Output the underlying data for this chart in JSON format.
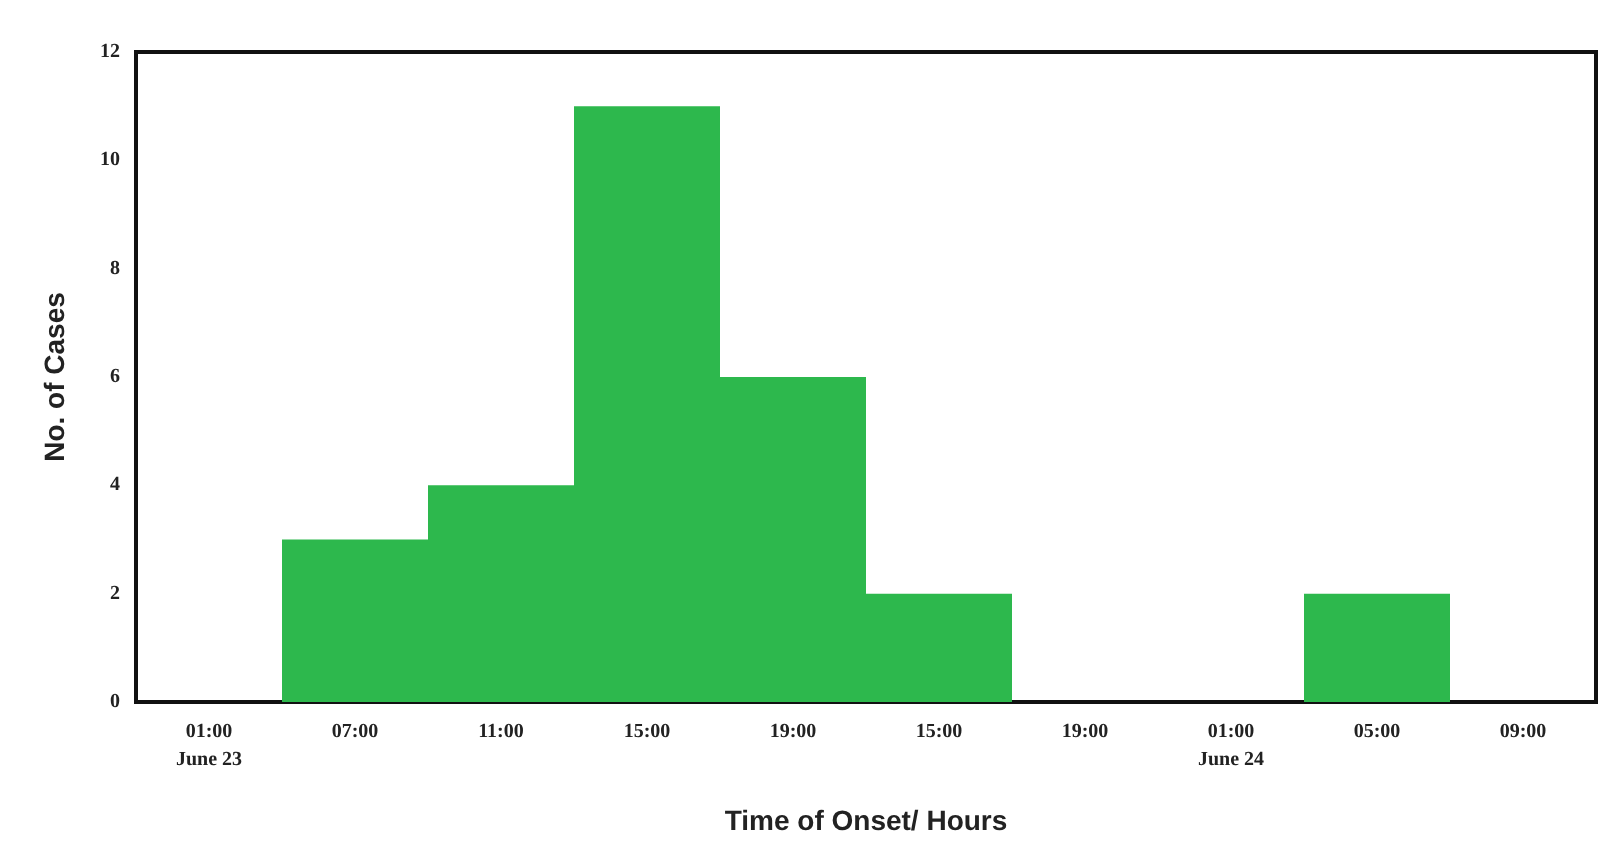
{
  "chart_data": {
    "type": "bar",
    "xlabel": "Time of Onset/ Hours",
    "ylabel": "No. of Cases",
    "categories": [
      "01:00\nJune 23",
      "07:00",
      "11:00",
      "15:00",
      "19:00",
      "15:00",
      "19:00",
      "01:00\nJune 24",
      "05:00",
      "09:00"
    ],
    "values": [
      0,
      3,
      4,
      11,
      6,
      2,
      0,
      0,
      2,
      0
    ],
    "color": "#2db84d",
    "ylim": [
      0,
      12
    ],
    "yticks": [
      0,
      2,
      4,
      6,
      8,
      10,
      12
    ],
    "grid": false
  }
}
